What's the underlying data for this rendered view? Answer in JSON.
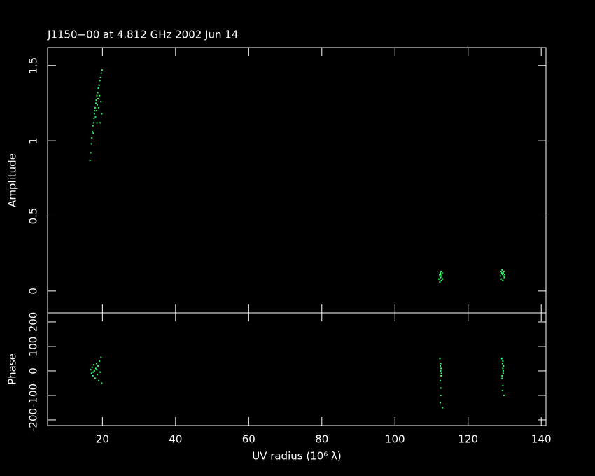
{
  "chart_data": [
    {
      "type": "scatter",
      "title": "J1150−00 at 4.812 GHz 2002 Jun 14",
      "y_label": "Amplitude",
      "xlim": [
        5,
        141.3
      ],
      "xticks": [
        20,
        40,
        60,
        80,
        100,
        120,
        140
      ],
      "ylim": [
        -0.145,
        1.62
      ],
      "yticks": [
        0,
        0.5,
        1,
        1.5
      ],
      "series": [
        {
          "color": "#33ff66",
          "x": [
            16.6,
            16.8,
            17.0,
            17.1,
            17.3,
            17.4,
            17.6,
            17.7,
            17.8,
            17.9,
            18.0,
            18.1,
            18.2,
            18.3,
            18.4,
            18.5,
            18.6,
            18.7,
            18.8,
            18.9,
            19.0,
            19.1,
            19.2,
            19.3,
            19.4,
            19.5,
            19.6,
            19.7,
            19.8,
            19.9,
            18.5,
            17.5,
            112.0,
            112.2,
            112.3,
            112.4,
            112.5,
            112.6,
            112.7,
            112.8,
            112.9,
            113.0,
            112.5,
            112.3,
            128.8,
            129.0,
            129.1,
            129.3,
            129.4,
            129.5,
            129.6,
            129.8,
            129.9,
            130.0,
            129.2,
            129.7
          ],
          "values": [
            0.87,
            0.92,
            0.98,
            1.02,
            1.06,
            1.1,
            1.12,
            1.15,
            1.18,
            1.2,
            1.22,
            1.16,
            1.25,
            1.27,
            1.2,
            1.3,
            1.24,
            1.32,
            1.28,
            1.35,
            1.22,
            1.37,
            1.3,
            1.4,
            1.12,
            1.42,
            1.26,
            1.45,
            1.18,
            1.47,
            1.12,
            1.05,
            0.08,
            0.11,
            0.06,
            0.12,
            0.09,
            0.13,
            0.07,
            0.1,
            0.12,
            0.08,
            0.11,
            0.1,
            0.1,
            0.13,
            0.08,
            0.14,
            0.11,
            0.07,
            0.12,
            0.13,
            0.09,
            0.11,
            0.12,
            0.1
          ]
        }
      ]
    },
    {
      "type": "scatter",
      "y_label": "Phase",
      "x_label": "UV radius  (10⁶ λ)",
      "xlim": [
        5,
        141.3
      ],
      "xticks": [
        20,
        40,
        60,
        80,
        100,
        120,
        140
      ],
      "ylim": [
        -223,
        237
      ],
      "yticks": [
        -200,
        -100,
        0,
        100,
        200
      ],
      "series": [
        {
          "color": "#33ff66",
          "x": [
            16.8,
            17.0,
            17.2,
            17.4,
            17.6,
            17.8,
            18.0,
            18.2,
            18.4,
            18.6,
            18.8,
            19.0,
            19.2,
            19.4,
            19.6,
            19.8,
            17.5,
            18.5,
            112.3,
            112.4,
            112.5,
            112.6,
            112.4,
            112.5,
            112.6,
            112.5,
            112.7,
            112.4,
            113.0,
            112.5,
            129.2,
            129.4,
            129.5,
            129.6,
            129.3,
            129.5,
            129.7,
            129.4,
            129.8,
            129.5,
            129.6,
            129.3
          ],
          "values": [
            5,
            -10,
            15,
            -20,
            25,
            0,
            -30,
            10,
            30,
            -15,
            20,
            -40,
            40,
            -5,
            55,
            -50,
            -5,
            5,
            50,
            20,
            0,
            -20,
            -40,
            -70,
            10,
            30,
            -10,
            -130,
            -150,
            -100,
            50,
            30,
            10,
            -10,
            -30,
            -60,
            20,
            -80,
            -100,
            40,
            0,
            -20
          ]
        }
      ]
    }
  ]
}
